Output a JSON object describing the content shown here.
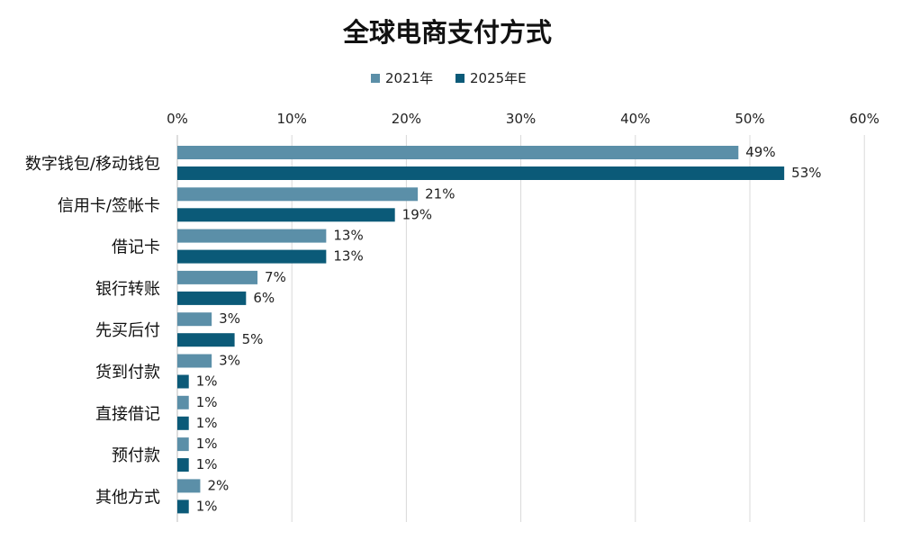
{
  "chart_data": {
    "type": "bar",
    "orientation": "horizontal",
    "title": "全球电商支付方式",
    "categories": [
      "数字钱包/移动钱包",
      "信用卡/签帐卡",
      "借记卡",
      "银行转账",
      "先买后付",
      "货到付款",
      "直接借记",
      "预付款",
      "其他方式"
    ],
    "series": [
      {
        "name": "2021年",
        "values": [
          49,
          21,
          13,
          7,
          3,
          3,
          1,
          1,
          2
        ]
      },
      {
        "name": "2025年E",
        "values": [
          53,
          19,
          13,
          6,
          5,
          1,
          1,
          1,
          1
        ]
      }
    ],
    "value_format": "percent",
    "x_ticks": [
      "0%",
      "10%",
      "20%",
      "30%",
      "40%",
      "50%",
      "60%"
    ],
    "xlim": [
      0,
      60
    ],
    "x_axis_position": "top",
    "grid": true,
    "legend_position": "top-center",
    "colors": [
      "#5b8fa8",
      "#0b5a78"
    ]
  }
}
